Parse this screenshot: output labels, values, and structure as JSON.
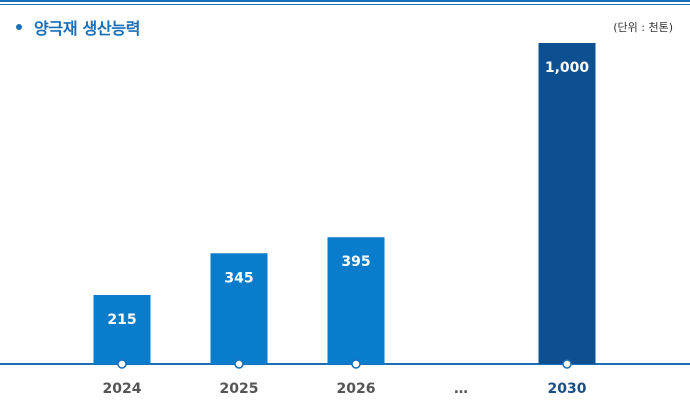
{
  "header": {
    "title": "양극재 생산능력",
    "unit": "(단위 : 천톤)"
  },
  "colors": {
    "accent": "#1a6fb8",
    "bar": "#0a7ccc",
    "bar_highlight": "#0c5091",
    "axis": "#1a6fb8"
  },
  "chart_data": {
    "type": "bar",
    "title": "양극재 생산능력",
    "unit": "(단위 : 천톤)",
    "categories": [
      "2024",
      "2025",
      "2026",
      "…",
      "2030"
    ],
    "values": [
      215,
      345,
      395,
      null,
      1000
    ],
    "value_labels": [
      "215",
      "345",
      "395",
      "",
      "1,000"
    ],
    "highlight_category": "2030",
    "ylim": [
      0,
      1000
    ],
    "grid": false,
    "legend": "none"
  }
}
